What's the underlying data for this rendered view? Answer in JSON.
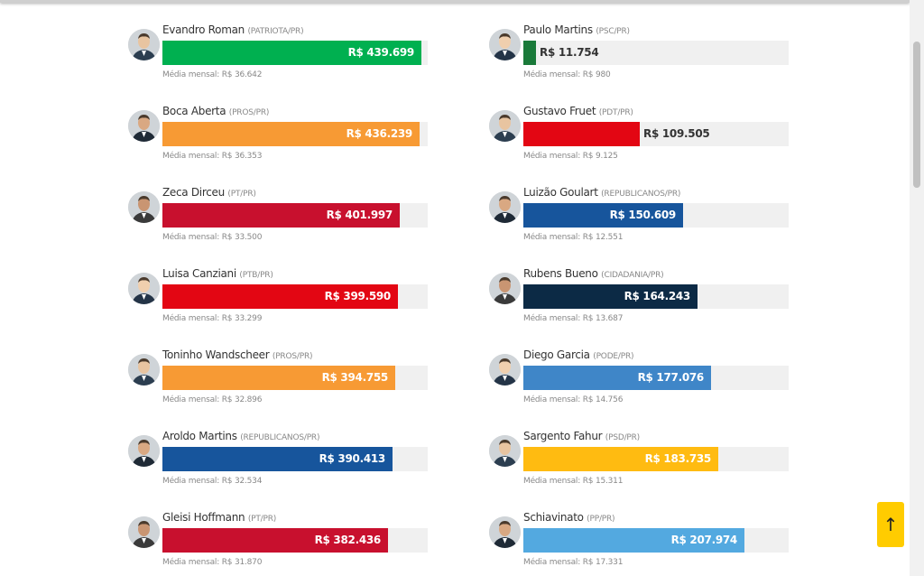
{
  "avg_prefix": "Média mensal: ",
  "columns": [
    {
      "entries": [
        {
          "name": "Evandro Roman",
          "party": "(PATRIOTA/PR)",
          "total": "R$ 439.699",
          "avg": "R$ 36.642",
          "value": 439699,
          "color": "#00b050"
        },
        {
          "name": "Boca Aberta",
          "party": "(PROS/PR)",
          "total": "R$ 436.239",
          "avg": "R$ 36.353",
          "value": 436239,
          "color": "#f79a34"
        },
        {
          "name": "Zeca Dirceu",
          "party": "(PT/PR)",
          "total": "R$ 401.997",
          "avg": "R$ 33.500",
          "value": 401997,
          "color": "#c8102e"
        },
        {
          "name": "Luisa Canziani",
          "party": "(PTB/PR)",
          "total": "R$ 399.590",
          "avg": "R$ 33.299",
          "value": 399590,
          "color": "#e30613"
        },
        {
          "name": "Toninho Wandscheer",
          "party": "(PROS/PR)",
          "total": "R$ 394.755",
          "avg": "R$ 32.896",
          "value": 394755,
          "color": "#f79a34"
        },
        {
          "name": "Aroldo Martins",
          "party": "(REPUBLICANOS/PR)",
          "total": "R$ 390.413",
          "avg": "R$ 32.534",
          "value": 390413,
          "color": "#17559c"
        },
        {
          "name": "Gleisi Hoffmann",
          "party": "(PT/PR)",
          "total": "R$ 382.436",
          "avg": "R$ 31.870",
          "value": 382436,
          "color": "#c8102e"
        }
      ]
    },
    {
      "entries": [
        {
          "name": "Paulo Martins",
          "party": "(PSC/PR)",
          "total": "R$ 11.754",
          "avg": "R$ 980",
          "value": 11754,
          "color": "#1a7a3a"
        },
        {
          "name": "Gustavo Fruet",
          "party": "(PDT/PR)",
          "total": "R$ 109.505",
          "avg": "R$ 9.125",
          "value": 109505,
          "color": "#e30613"
        },
        {
          "name": "Luizão Goulart",
          "party": "(REPUBLICANOS/PR)",
          "total": "R$ 150.609",
          "avg": "R$ 12.551",
          "value": 150609,
          "color": "#17559c"
        },
        {
          "name": "Rubens Bueno",
          "party": "(CIDADANIA/PR)",
          "total": "R$ 164.243",
          "avg": "R$ 13.687",
          "value": 164243,
          "color": "#0c2a45"
        },
        {
          "name": "Diego Garcia",
          "party": "(PODE/PR)",
          "total": "R$ 177.076",
          "avg": "R$ 14.756",
          "value": 177076,
          "color": "#3f86c8"
        },
        {
          "name": "Sargento Fahur",
          "party": "(PSD/PR)",
          "total": "R$ 183.735",
          "avg": "R$ 15.311",
          "value": 183735,
          "color": "#ffbb11"
        },
        {
          "name": "Schiavinato",
          "party": "(PP/PR)",
          "total": "R$ 207.974",
          "avg": "R$ 17.331",
          "value": 207974,
          "color": "#53a9e0"
        }
      ]
    }
  ],
  "back_to_top": {
    "label": "↑",
    "icon": "arrow-up-icon",
    "color": "#ffcc00"
  }
}
